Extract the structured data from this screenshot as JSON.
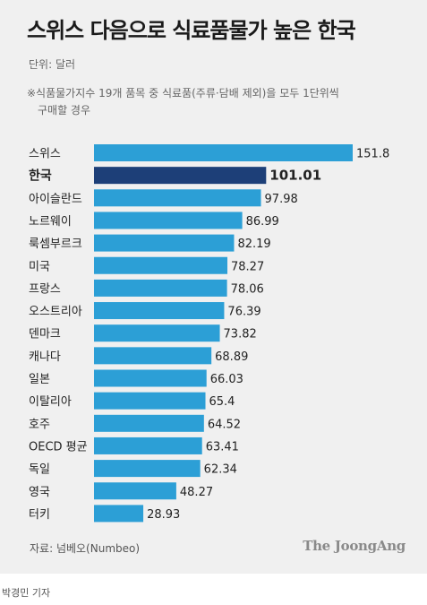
{
  "title": "스위스 다음으로 식료품물가 높은 한국",
  "unit": "단위: 달러",
  "note": {
    "line1": "※식품물가지수 19개 품목 중 식료품(주류·담배 제외)을 모두 1단위씩",
    "line2": "구매할 경우"
  },
  "source": "자료: 넘베오(Numbeo)",
  "logo": "The JoongAng",
  "byline": "박경민 기자",
  "colors": {
    "bar": "#2c9fd6",
    "highlight_bar": "#1d3f78",
    "background": "#f0f0f0",
    "text": "#222222"
  },
  "chart_data": {
    "type": "bar",
    "orientation": "horizontal",
    "categories": [
      "스위스",
      "한국",
      "아이슬란드",
      "노르웨이",
      "룩셈부르크",
      "미국",
      "프랑스",
      "오스트리아",
      "덴마크",
      "캐나다",
      "일본",
      "이탈리아",
      "호주",
      "OECD 평균",
      "독일",
      "영국",
      "터키"
    ],
    "values": [
      151.8,
      101.01,
      97.98,
      86.99,
      82.19,
      78.27,
      78.06,
      76.39,
      73.82,
      68.89,
      66.03,
      65.4,
      64.52,
      63.41,
      62.34,
      48.27,
      28.93
    ],
    "value_labels": [
      "151.8",
      "101.01",
      "97.98",
      "86.99",
      "82.19",
      "78.27",
      "78.06",
      "76.39",
      "73.82",
      "68.89",
      "66.03",
      "65.4",
      "64.52",
      "63.41",
      "62.34",
      "48.27",
      "28.93"
    ],
    "highlight": "한국",
    "xlim": [
      0,
      151.8
    ],
    "grid": false,
    "legend": "none"
  }
}
